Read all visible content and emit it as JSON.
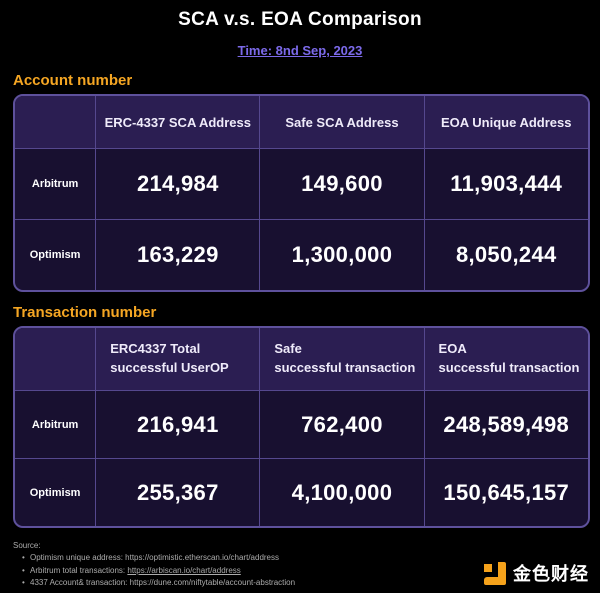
{
  "page": {
    "title": "SCA v.s. EOA Comparison",
    "time_label": "Time: 8nd Sep, 2023"
  },
  "colors": {
    "background": "#000000",
    "accent_orange": "#F5A623",
    "accent_purple": "#7C6AEA",
    "table_header_bg": "#2B1E52",
    "table_body_bg": "#181030",
    "table_border": "#55488E",
    "logo_orange": "#F5A21B",
    "source_text": "#ACACAC"
  },
  "account_table": {
    "section_title": "Account number",
    "columns": [
      "ERC-4337 SCA Address",
      "Safe SCA Address",
      "EOA Unique Address"
    ],
    "rows": [
      {
        "label": "Arbitrum",
        "values": [
          "214,984",
          "149,600",
          "11,903,444"
        ]
      },
      {
        "label": "Optimism",
        "values": [
          "163,229",
          "1,300,000",
          "8,050,244"
        ]
      }
    ]
  },
  "transaction_table": {
    "section_title": "Transaction number",
    "columns": [
      {
        "line1": "ERC4337 Total",
        "line2": "successful UserOP"
      },
      {
        "line1": "Safe",
        "line2": "successful transaction"
      },
      {
        "line1": "EOA",
        "line2": "successful transaction"
      }
    ],
    "rows": [
      {
        "label": "Arbitrum",
        "values": [
          "216,941",
          "762,400",
          "248,589,498"
        ]
      },
      {
        "label": "Optimism",
        "values": [
          "255,367",
          "4,100,000",
          "150,645,157"
        ]
      }
    ]
  },
  "source": {
    "label": "Source:",
    "items": [
      {
        "bullet": "•",
        "prefix": "Optimism unique address: ",
        "url": "https://optimistic.etherscan.io/chart/address"
      },
      {
        "bullet": "•",
        "prefix": "Arbitrum total transactions: ",
        "url": "https://arbiscan.io/chart/address"
      },
      {
        "bullet": "•",
        "prefix": "4337 Account& transaction: ",
        "url": "https://dune.com/niftytable/account-abstraction"
      }
    ]
  },
  "logo": {
    "text": "金色财经"
  },
  "chart_data": [
    {
      "type": "table",
      "title": "Account number",
      "columns": [
        "",
        "ERC-4337 SCA Address",
        "Safe SCA Address",
        "EOA Unique Address"
      ],
      "rows": [
        [
          "Arbitrum",
          214984,
          149600,
          11903444
        ],
        [
          "Optimism",
          163229,
          1300000,
          8050244
        ]
      ]
    },
    {
      "type": "table",
      "title": "Transaction number",
      "columns": [
        "",
        "ERC4337 Total successful UserOP",
        "Safe successful transaction",
        "EOA successful transaction"
      ],
      "rows": [
        [
          "Arbitrum",
          216941,
          762400,
          248589498
        ],
        [
          "Optimism",
          255367,
          4100000,
          150645157
        ]
      ]
    }
  ]
}
